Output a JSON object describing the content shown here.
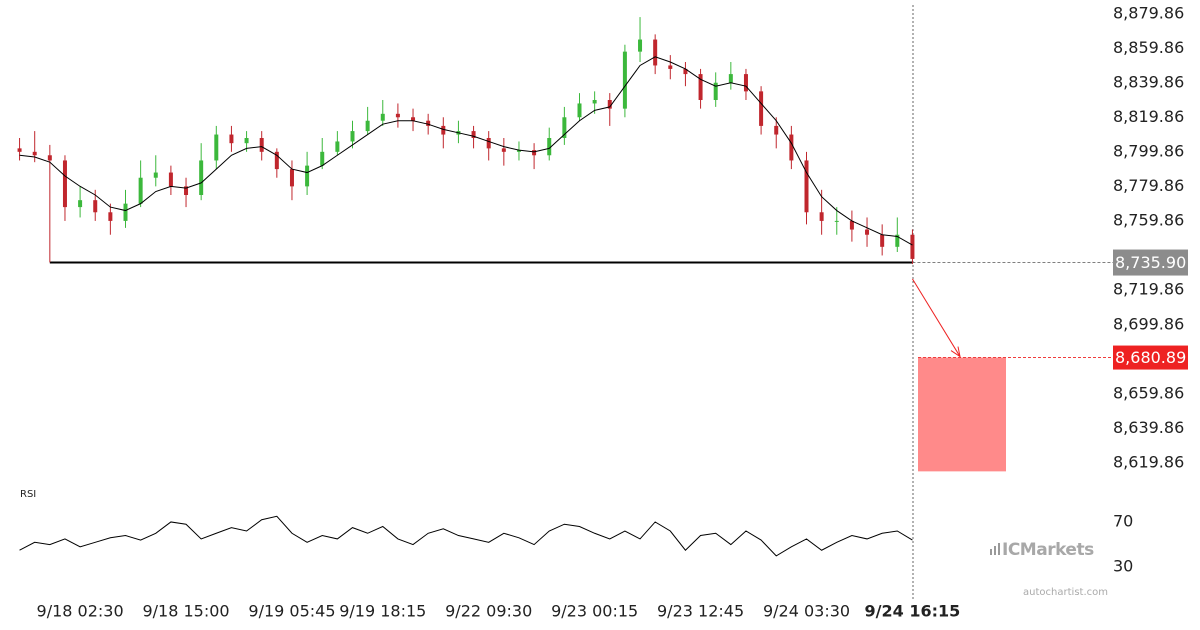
{
  "chart_data": [
    {
      "type": "candlestick",
      "categories": [
        null,
        null,
        null,
        null,
        "9/18 02:30",
        null,
        null,
        null,
        null,
        null,
        null,
        "9/18 15:00",
        null,
        null,
        null,
        null,
        null,
        null,
        "9/19 05:45",
        null,
        null,
        null,
        null,
        null,
        "9/19 18:15",
        null,
        null,
        null,
        null,
        null,
        null,
        "9/22 09:30",
        null,
        null,
        null,
        null,
        null,
        null,
        "9/23 00:15",
        null,
        null,
        null,
        null,
        null,
        null,
        "9/23 12:45",
        null,
        null,
        null,
        null,
        null,
        null,
        "9/24 03:30",
        null,
        null,
        null,
        null,
        null,
        null,
        "9/24 16:15"
      ],
      "open": [
        8802,
        8800,
        8798,
        8795,
        8768,
        8772,
        8765,
        8760,
        8770,
        8785,
        8788,
        8780,
        8775,
        8795,
        8810,
        8805,
        8808,
        8800,
        8790,
        8780,
        8792,
        8800,
        8806,
        8812,
        8818,
        8822,
        8820,
        8818,
        8815,
        8810,
        8812,
        8808,
        8802,
        8800,
        8801,
        8798,
        8808,
        8820,
        8828,
        8830,
        8825,
        8858,
        8865,
        8850,
        8848,
        8845,
        8830,
        8840,
        8845,
        8835,
        8815,
        8810,
        8795,
        8765,
        8760,
        8760,
        8755,
        8752,
        8745,
        8752
      ],
      "high": [
        8808,
        8812,
        8804,
        8798,
        8780,
        8778,
        8770,
        8778,
        8795,
        8798,
        8792,
        8785,
        8805,
        8815,
        8815,
        8812,
        8812,
        8802,
        8795,
        8800,
        8808,
        8812,
        8818,
        8826,
        8830,
        8828,
        8825,
        8822,
        8820,
        8818,
        8815,
        8812,
        8808,
        8806,
        8805,
        8814,
        8826,
        8834,
        8835,
        8834,
        8862,
        8878,
        8868,
        8856,
        8852,
        8848,
        8846,
        8852,
        8848,
        8838,
        8820,
        8815,
        8800,
        8778,
        8768,
        8766,
        8762,
        8758,
        8762,
        8755
      ],
      "low": [
        8795,
        8794,
        8736,
        8760,
        8762,
        8760,
        8752,
        8756,
        8768,
        8780,
        8775,
        8768,
        8772,
        8790,
        8800,
        8800,
        8795,
        8785,
        8772,
        8775,
        8790,
        8798,
        8802,
        8810,
        8815,
        8814,
        8812,
        8810,
        8802,
        8805,
        8802,
        8795,
        8792,
        8795,
        8790,
        8795,
        8804,
        8818,
        8822,
        8815,
        8820,
        8852,
        8845,
        8842,
        8838,
        8825,
        8826,
        8836,
        8830,
        8810,
        8802,
        8790,
        8758,
        8752,
        8752,
        8748,
        8745,
        8740,
        8742,
        8735
      ],
      "close": [
        8800,
        8798,
        8795,
        8768,
        8772,
        8765,
        8760,
        8770,
        8785,
        8788,
        8780,
        8775,
        8795,
        8810,
        8805,
        8808,
        8800,
        8790,
        8780,
        8792,
        8800,
        8806,
        8812,
        8818,
        8822,
        8820,
        8818,
        8815,
        8810,
        8812,
        8808,
        8802,
        8800,
        8801,
        8798,
        8808,
        8820,
        8828,
        8830,
        8825,
        8858,
        8865,
        8850,
        8848,
        8845,
        8830,
        8840,
        8845,
        8835,
        8815,
        8810,
        8795,
        8765,
        8760,
        8760,
        8755,
        8752,
        8745,
        8752,
        8738
      ],
      "up_color": "#3cb83c",
      "down_color": "#c0262d",
      "moving_average": {
        "color": "#000000",
        "values": [
          8798,
          8797,
          8794,
          8786,
          8780,
          8775,
          8768,
          8766,
          8770,
          8777,
          8780,
          8779,
          8782,
          8790,
          8798,
          8802,
          8803,
          8798,
          8790,
          8788,
          8792,
          8798,
          8804,
          8810,
          8816,
          8818,
          8818,
          8816,
          8813,
          8811,
          8809,
          8806,
          8803,
          8801,
          8800,
          8802,
          8810,
          8818,
          8824,
          8826,
          8838,
          8850,
          8855,
          8852,
          8848,
          8842,
          8838,
          8840,
          8838,
          8828,
          8818,
          8805,
          8788,
          8774,
          8766,
          8760,
          8756,
          8752,
          8751,
          8746
        ]
      },
      "support": {
        "value": 8735.9,
        "label": "8,735.90",
        "color": "#000000"
      },
      "target": {
        "value": 8680.89,
        "label": "8,680.89",
        "bottom": 8615,
        "color": "#ff8a8a",
        "label_color": "#ee2222"
      },
      "ylim": [
        8610,
        8885
      ],
      "yticks": [
        {
          "value": 8879.86,
          "label": "8,879.86"
        },
        {
          "value": 8859.86,
          "label": "8,859.86"
        },
        {
          "value": 8839.86,
          "label": "8,839.86"
        },
        {
          "value": 8819.86,
          "label": "8,819.86"
        },
        {
          "value": 8799.86,
          "label": "8,799.86"
        },
        {
          "value": 8779.86,
          "label": "8,779.86"
        },
        {
          "value": 8759.86,
          "label": "8,759.86"
        },
        {
          "value": 8719.86,
          "label": "8,719.86"
        },
        {
          "value": 8699.86,
          "label": "8,699.86"
        },
        {
          "value": 8659.86,
          "label": "8,659.86"
        },
        {
          "value": 8639.86,
          "label": "8,639.86"
        },
        {
          "value": 8619.86,
          "label": "8,619.86"
        }
      ]
    },
    {
      "type": "line",
      "title": "RSI",
      "color": "#000000",
      "values": [
        45,
        52,
        50,
        55,
        48,
        52,
        56,
        58,
        54,
        60,
        70,
        68,
        55,
        60,
        65,
        62,
        72,
        75,
        60,
        52,
        58,
        55,
        65,
        60,
        66,
        55,
        50,
        60,
        64,
        58,
        55,
        52,
        60,
        56,
        50,
        62,
        68,
        66,
        60,
        55,
        62,
        55,
        70,
        62,
        45,
        58,
        60,
        50,
        62,
        54,
        40,
        48,
        55,
        45,
        52,
        58,
        55,
        60,
        62,
        54
      ],
      "ylim": [
        20,
        85
      ],
      "yticks": [
        30,
        70
      ]
    }
  ],
  "watermark": {
    "brand": "ICMarkets",
    "source": "autochartist.com"
  }
}
